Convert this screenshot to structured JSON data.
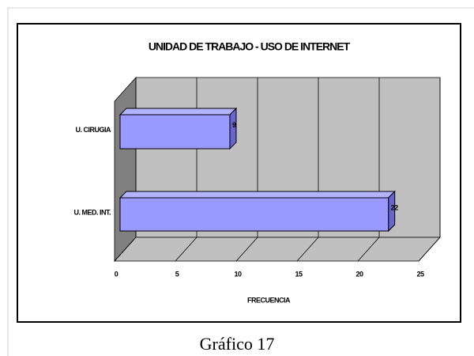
{
  "chart_data": {
    "type": "bar",
    "orientation": "horizontal",
    "title": "UNIDAD DE TRABAJO - USO DE INTERNET",
    "categories": [
      "U. CIRUGIA",
      "U. MED. INT."
    ],
    "values": [
      9,
      22
    ],
    "color": "#9999ff",
    "xlim": [
      0,
      25
    ],
    "xticks": [
      0,
      5,
      10,
      15,
      20,
      25
    ],
    "xlabel": "FRECUENCIA",
    "grid": true
  },
  "caption": "Gráfico 17"
}
